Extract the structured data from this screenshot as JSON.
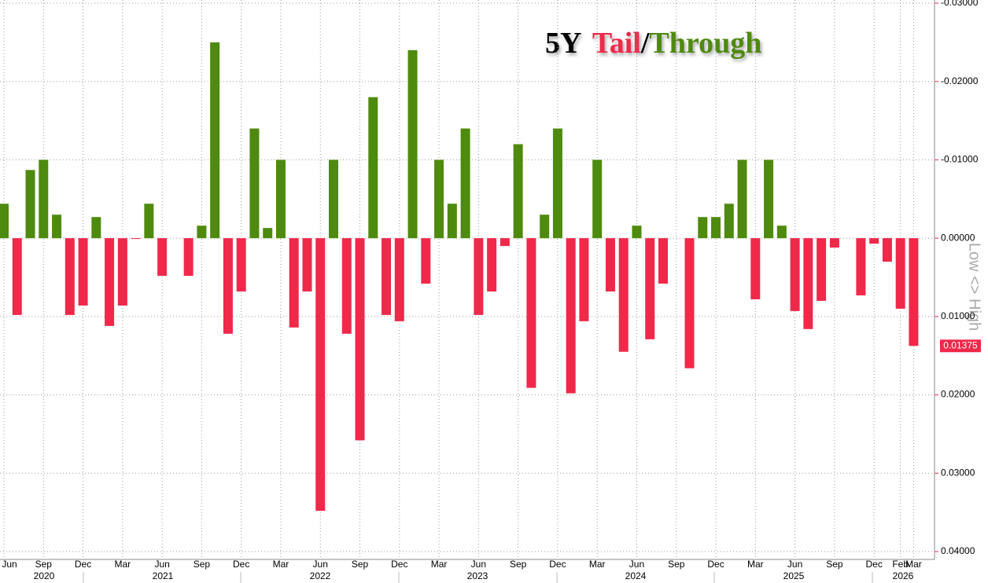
{
  "chart_data": {
    "type": "bar",
    "title_parts": [
      "5Y",
      "Tail",
      "/",
      "Through"
    ],
    "y_axis_label": "Low <> High",
    "categories": [
      "Jun",
      null,
      null,
      "Sep",
      null,
      null,
      "Dec",
      null,
      null,
      "Mar",
      null,
      null,
      "Jun",
      null,
      null,
      "Sep",
      null,
      null,
      "Dec",
      null,
      null,
      "Mar",
      null,
      null,
      "Jun",
      null,
      null,
      "Sep",
      null,
      null,
      "Dec",
      null,
      null,
      "Mar",
      null,
      null,
      "Jun",
      null,
      null,
      "Sep",
      null,
      null,
      "Dec",
      null,
      null,
      "Mar",
      null,
      null,
      "Jun",
      null,
      null,
      "Sep",
      null,
      null,
      "Dec",
      null,
      null,
      "Mar",
      null,
      null,
      "Jun",
      null,
      null,
      "Sep",
      null,
      null,
      "Dec",
      null,
      "Feb",
      "Mar"
    ],
    "years": [
      "2020",
      "2021",
      "2022",
      "2023",
      "2024",
      "2025",
      "2026"
    ],
    "values": [
      -0.0044,
      0.0098,
      -0.0087,
      -0.01,
      -0.003,
      0.0098,
      0.0086,
      -0.0027,
      0.0112,
      0.0086,
      0.0001,
      -0.0044,
      0.0048,
      0.0,
      0.0048,
      -0.0016,
      -0.025,
      0.0122,
      0.0068,
      -0.014,
      -0.0013,
      -0.01,
      0.0114,
      0.0068,
      0.0348,
      -0.01,
      0.0122,
      0.0258,
      -0.018,
      0.0098,
      0.0106,
      -0.024,
      0.0058,
      -0.01,
      -0.0044,
      -0.014,
      0.0098,
      0.0068,
      0.001,
      -0.012,
      0.0191,
      -0.003,
      -0.014,
      0.0198,
      0.0106,
      -0.01,
      0.0068,
      0.0145,
      -0.0016,
      0.0129,
      0.0058,
      0.0,
      0.0166,
      -0.0027,
      -0.0027,
      -0.0044,
      -0.01,
      0.0078,
      -0.01,
      -0.0016,
      0.0093,
      0.0116,
      0.008,
      0.0012,
      0.0,
      0.0073,
      0.0007,
      0.003,
      0.009,
      0.01375
    ],
    "color_tail": "#f0284a",
    "color_through": "#4e8a0e",
    "ylim": [
      -0.03,
      0.04
    ],
    "y_inverted": true,
    "yticks": [
      {
        "value": -0.03,
        "label": "-0.03000"
      },
      {
        "value": -0.02,
        "label": "-0.02000"
      },
      {
        "value": -0.01,
        "label": "-0.01000"
      },
      {
        "value": 0,
        "label": "0.00000"
      },
      {
        "value": 0.01,
        "label": "0.01000"
      },
      {
        "value": 0.02,
        "label": "0.02000"
      },
      {
        "value": 0.03,
        "label": "0.03000"
      },
      {
        "value": 0.04,
        "label": "0.04000"
      }
    ],
    "grid": true
  }
}
